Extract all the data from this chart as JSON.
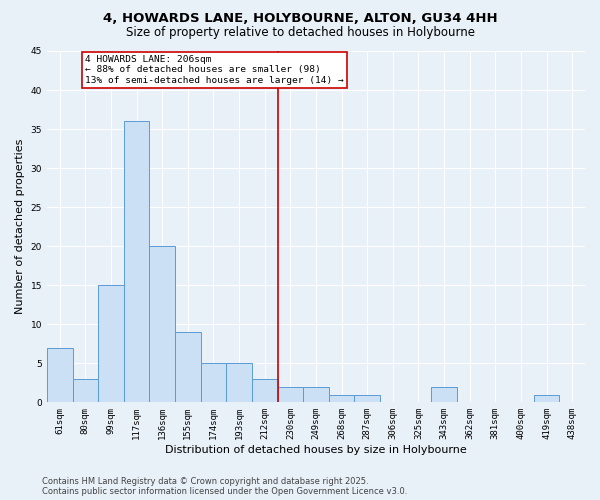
{
  "title_line1": "4, HOWARDS LANE, HOLYBOURNE, ALTON, GU34 4HH",
  "title_line2": "Size of property relative to detached houses in Holybourne",
  "xlabel": "Distribution of detached houses by size in Holybourne",
  "ylabel": "Number of detached properties",
  "bar_color": "#cce0f5",
  "bar_edge_color": "#5b9bd5",
  "background_color": "#e8f0f8",
  "grid_color": "#ffffff",
  "categories": [
    "61sqm",
    "80sqm",
    "99sqm",
    "117sqm",
    "136sqm",
    "155sqm",
    "174sqm",
    "193sqm",
    "212sqm",
    "230sqm",
    "249sqm",
    "268sqm",
    "287sqm",
    "306sqm",
    "325sqm",
    "343sqm",
    "362sqm",
    "381sqm",
    "400sqm",
    "419sqm",
    "438sqm"
  ],
  "values": [
    7,
    3,
    15,
    36,
    20,
    9,
    5,
    5,
    3,
    2,
    2,
    1,
    1,
    0,
    0,
    2,
    0,
    0,
    0,
    1,
    0
  ],
  "vline_x": 8.5,
  "vline_color": "#cc0000",
  "annotation_text": "4 HOWARDS LANE: 206sqm\n← 88% of detached houses are smaller (98)\n13% of semi-detached houses are larger (14) →",
  "annotation_box_color": "#ffffff",
  "annotation_box_edge": "#cc0000",
  "ylim": [
    0,
    45
  ],
  "yticks": [
    0,
    5,
    10,
    15,
    20,
    25,
    30,
    35,
    40,
    45
  ],
  "footnote1": "Contains HM Land Registry data © Crown copyright and database right 2025.",
  "footnote2": "Contains public sector information licensed under the Open Government Licence v3.0.",
  "title_fontsize": 9.5,
  "subtitle_fontsize": 8.5,
  "tick_fontsize": 6.5,
  "label_fontsize": 8,
  "footnote_fontsize": 6
}
